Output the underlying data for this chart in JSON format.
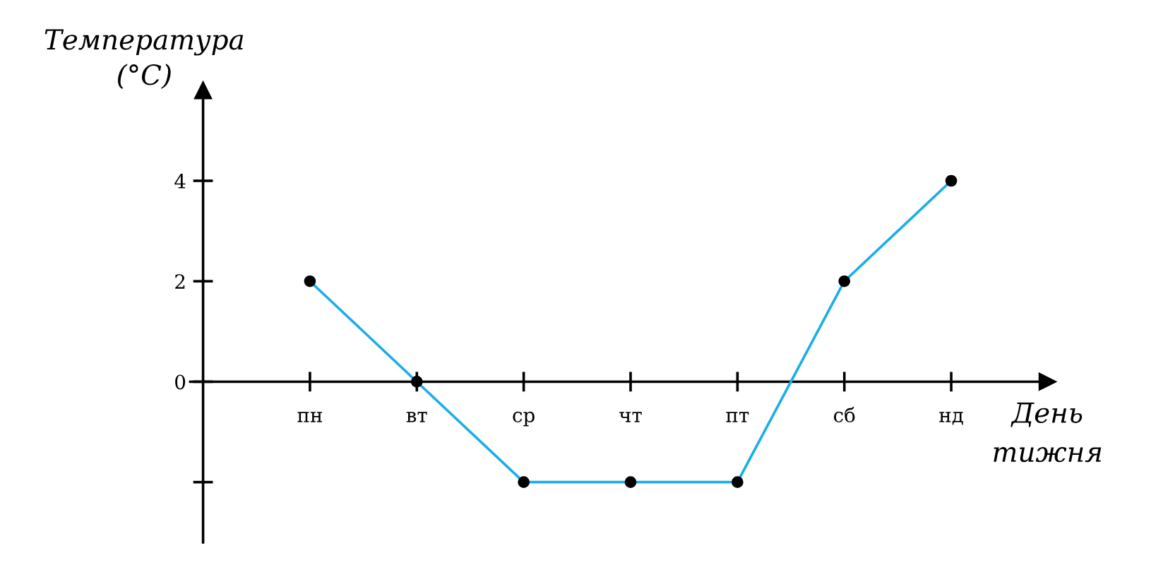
{
  "chart_data": {
    "type": "line",
    "ylabel": "Температура\n(°C)",
    "xlabel": "День\nтижня",
    "categories": [
      "пн",
      "вт",
      "ср",
      "чт",
      "пт",
      "сб",
      "нд"
    ],
    "series": [
      {
        "color": "#1aaee8",
        "values": [
          2,
          0,
          -2,
          -2,
          -2,
          2,
          4
        ]
      }
    ],
    "ylim": [
      -3.2,
      5.8
    ],
    "yticks": [
      {
        "value": -2,
        "label": null
      },
      {
        "value": 0,
        "label": "0"
      },
      2,
      4
    ],
    "marker": "circle",
    "line_style": "solid",
    "grid": false,
    "legend": false
  }
}
